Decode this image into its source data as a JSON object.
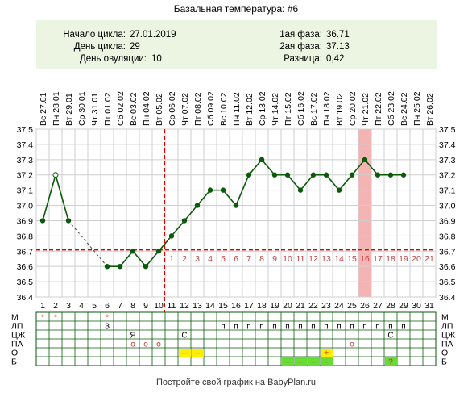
{
  "title": "Базальная температура: #6",
  "info": {
    "cycle_start_label": "Начало цикла:",
    "cycle_start": "27.01.2019",
    "cycle_day_label": "День цикла:",
    "cycle_day": "29",
    "ovulation_day_label": "День овуляции:",
    "ovulation_day": "10",
    "phase1_label": "1ая фаза:",
    "phase1": "36.71",
    "phase2_label": "2ая фаза:",
    "phase2": "37.13",
    "difference_label": "Разница:",
    "difference": "0,42"
  },
  "footer": "Постройте свой график на BabyPlan.ru",
  "colors": {
    "background": "#ffffff",
    "info_panel": "#ebf5e1",
    "line": "#0a5a0a",
    "marker": "#0a5a0a",
    "coverline": "#e00000",
    "highlight": "#f4b4b4",
    "post_ovulation_numbers": "#c04040",
    "star": "#e04040",
    "green_cell": "#66dd33",
    "yellow_cell": "#ffee00"
  },
  "chart_data": {
    "type": "line",
    "x": [
      "Вс 27.01",
      "Пн 28.01",
      "Вт 29.01",
      "Ср 30.01",
      "Чт 31.01",
      "Пт 01.02",
      "Сб 02.02",
      "Вс 03.02",
      "Пн 04.02",
      "Вт 05.02",
      "Ср 06.02",
      "Чт 07.02",
      "Пт 08.02",
      "Сб 09.02",
      "Вс 10.02",
      "Пн 11.02",
      "Вт 12.02",
      "Ср 13.02",
      "Чт 14.02",
      "Пт 15.02",
      "Сб 16.02",
      "Вс 17.02",
      "Пн 18.02",
      "Вт 19.02",
      "Ср 20.02",
      "Чт 21.02",
      "Пт 22.02",
      "Сб 23.02",
      "Вс 24.02",
      "Пн 25.02",
      "Вт 26.02"
    ],
    "days": [
      "1",
      "2",
      "3",
      "4",
      "5",
      "6",
      "7",
      "8",
      "9",
      "10",
      "11",
      "12",
      "13",
      "14",
      "15",
      "16",
      "17",
      "18",
      "19",
      "20",
      "21",
      "22",
      "23",
      "24",
      "25",
      "26",
      "27",
      "28",
      "29",
      "30",
      "31"
    ],
    "post_ovulation_days": [
      "1",
      "2",
      "3",
      "4",
      "5",
      "6",
      "7",
      "8",
      "9",
      "10",
      "11",
      "12",
      "13",
      "14",
      "15",
      "16",
      "17",
      "18",
      "19",
      "20",
      "21"
    ],
    "temperatures": [
      36.9,
      37.2,
      36.9,
      null,
      null,
      36.6,
      36.6,
      36.7,
      36.6,
      36.7,
      36.8,
      36.9,
      37.0,
      37.1,
      37.1,
      37.0,
      37.2,
      37.3,
      37.2,
      37.2,
      37.1,
      37.2,
      37.2,
      37.1,
      37.2,
      37.3,
      37.2,
      37.2,
      37.2,
      null,
      null
    ],
    "y_ticks": [
      "36.4",
      "36.5",
      "36.6",
      "36.7",
      "36.8",
      "36.9",
      "37.0",
      "37.1",
      "37.2",
      "37.3",
      "37.4",
      "37.5"
    ],
    "ylim": [
      36.4,
      37.5
    ],
    "coverline": 36.71,
    "ovulation_day": 10,
    "highlight_day": 26,
    "open_marker_day": 2,
    "gap": [
      3,
      6
    ],
    "moon_day": 26,
    "grid": true,
    "row_labels": [
      "М",
      "ЛП",
      "ЦЖ",
      "ПА",
      "О",
      "Б"
    ],
    "rows": {
      "M": {
        "stars": [
          1,
          2,
          6
        ]
      },
      "LP": {
        "letters": [
          {
            "day": 6,
            "text": "З"
          }
        ],
        "p_days": [
          15,
          16,
          17,
          18,
          19,
          20,
          21,
          22,
          23,
          24,
          25,
          26,
          27,
          28,
          29
        ]
      },
      "CZ": {
        "letters": [
          {
            "day": 8,
            "text": "Я"
          },
          {
            "day": 12,
            "text": "С"
          },
          {
            "day": 28,
            "text": "С"
          }
        ]
      },
      "PA": {
        "o_days": [
          8,
          9,
          10,
          25
        ]
      },
      "O": {
        "minus_days": [
          12,
          13
        ],
        "plus_days": [
          23
        ]
      },
      "B": {
        "minus_days": [
          20,
          21,
          22,
          23
        ],
        "question_days": [
          28
        ]
      }
    }
  }
}
